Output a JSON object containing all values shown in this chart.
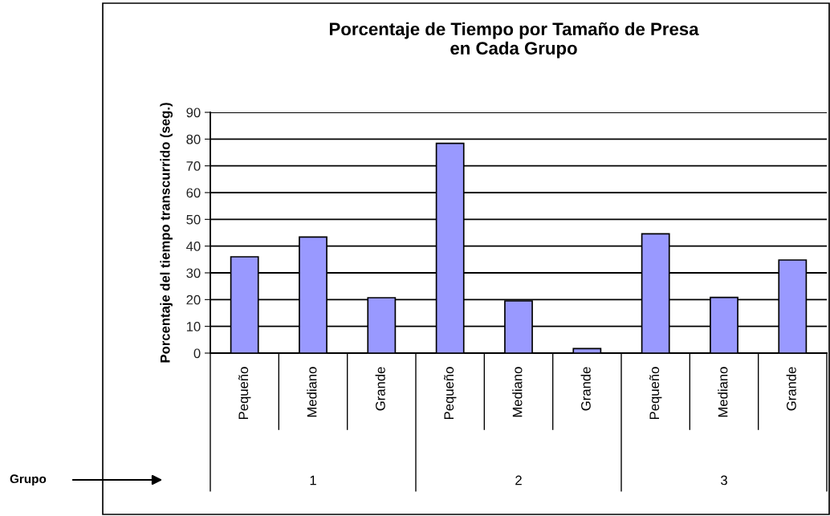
{
  "chart_data": {
    "type": "bar",
    "title": "Porcentaje de Tiempo por Tamaño de Presa\nen Cada Grupo",
    "ylabel": "Porcentaje del tiempo transcurrido (seg.)",
    "categories": [
      "Pequeño",
      "Mediano",
      "Grande",
      "Pequeño",
      "Mediano",
      "Grande",
      "Pequeño",
      "Mediano",
      "Grande"
    ],
    "values": [
      36,
      43.4,
      20.7,
      78.4,
      19.5,
      1.7,
      44.6,
      20.8,
      34.8
    ],
    "color": "#9999ff",
    "ylim": [
      0,
      90
    ],
    "yticks": [
      0,
      10,
      20,
      30,
      40,
      50,
      60,
      70,
      80,
      90
    ],
    "grid": "y",
    "annotations": [
      "1",
      "2",
      "3",
      "Grupo"
    ]
  }
}
